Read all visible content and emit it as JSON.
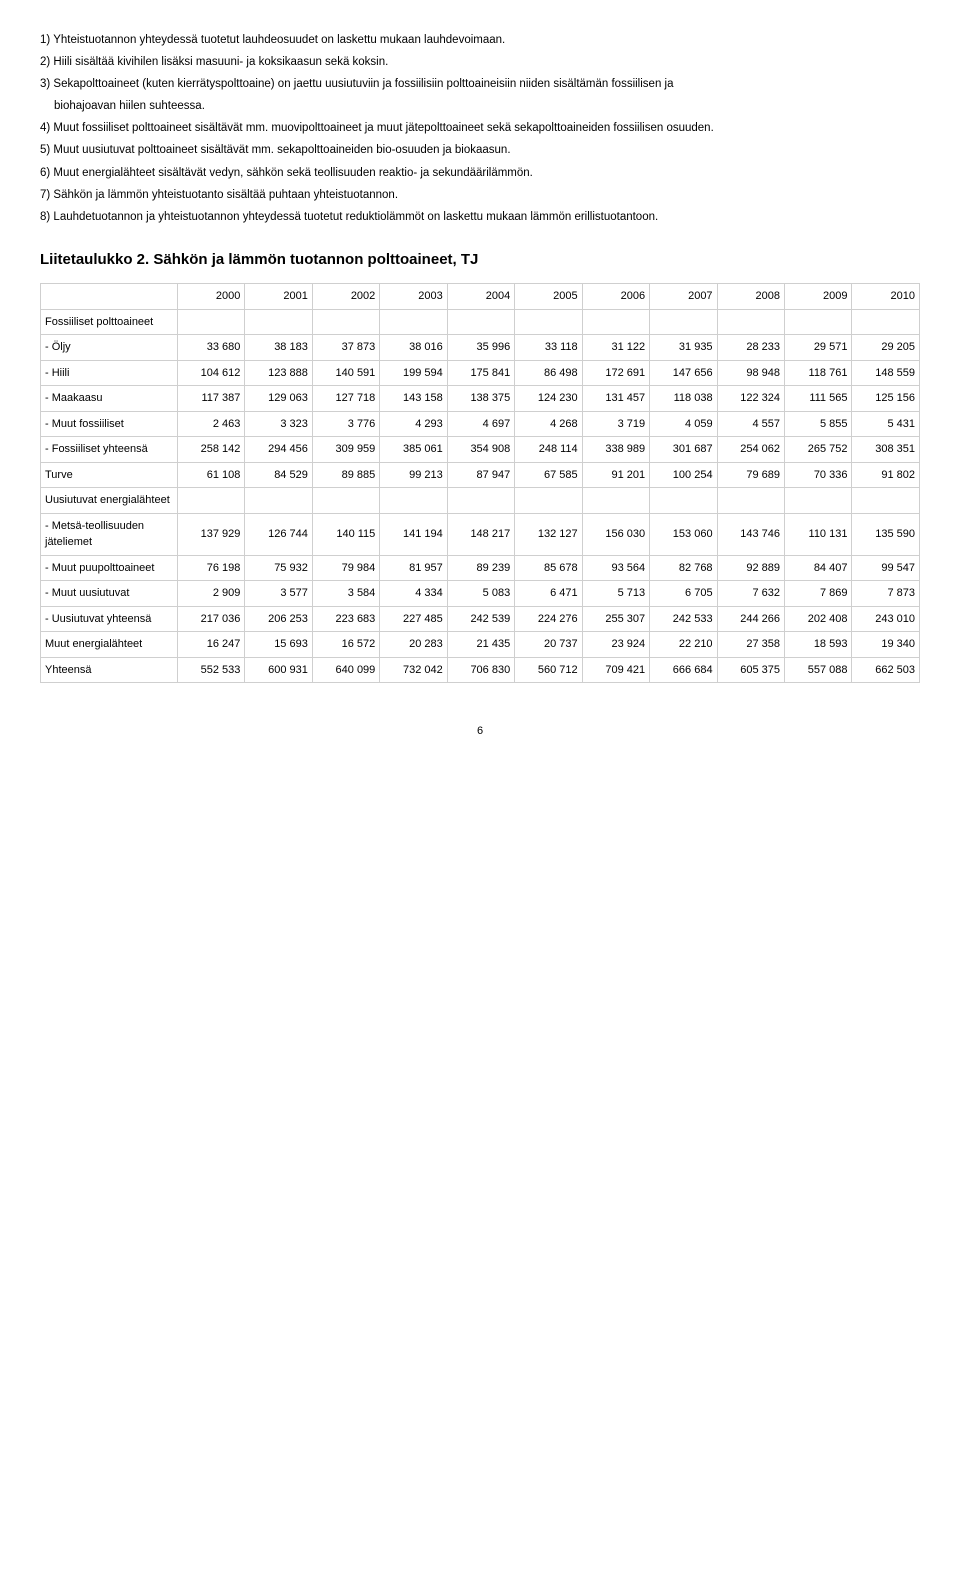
{
  "notes": {
    "n1": "1) Yhteistuotannon yhteydessä tuotetut lauhdeosuudet on laskettu mukaan lauhdevoimaan.",
    "n2": "2) Hiili sisältää kivihilen lisäksi masuuni- ja koksikaasun sekä koksin.",
    "n3a": "3) Sekapolttoaineet (kuten kierrätyspolttoaine) on jaettu uusiutuviin ja fossiilisiin polttoaineisiin niiden sisältämän fossiilisen ja",
    "n3b": "biohajoavan hiilen suhteessa.",
    "n4": "4) Muut fossiiliset polttoaineet sisältävät mm. muovipolttoaineet ja muut jätepolttoaineet sekä sekapolttoaineiden fossiilisen osuuden.",
    "n5": "5) Muut uusiutuvat polttoaineet sisältävät mm. sekapolttoaineiden bio-osuuden ja biokaasun.",
    "n6": "6) Muut energialähteet sisältävät vedyn, sähkön sekä teollisuuden reaktio- ja sekundäärilämmön.",
    "n7": "7) Sähkön ja lämmön yhteistuotanto sisältää puhtaan yhteistuotannon.",
    "n8": "8) Lauhdetuotannon ja yhteistuotannon yhteydessä tuotetut reduktiolämmöt on laskettu mukaan lämmön erillistuotantoon."
  },
  "table_title": "Liitetaulukko 2. Sähkön ja lämmön tuotannon polttoaineet, TJ",
  "years": [
    "2000",
    "2001",
    "2002",
    "2003",
    "2004",
    "2005",
    "2006",
    "2007",
    "2008",
    "2009",
    "2010"
  ],
  "rows": [
    {
      "label": "Fossiiliset polttoaineet",
      "values": [
        "",
        "",
        "",
        "",
        "",
        "",
        "",
        "",
        "",
        "",
        ""
      ]
    },
    {
      "label": "- Öljy",
      "values": [
        "33 680",
        "38 183",
        "37 873",
        "38 016",
        "35 996",
        "33 118",
        "31 122",
        "31 935",
        "28 233",
        "29 571",
        "29 205"
      ]
    },
    {
      "label": "- Hiili",
      "values": [
        "104 612",
        "123 888",
        "140 591",
        "199 594",
        "175 841",
        "86 498",
        "172 691",
        "147 656",
        "98 948",
        "118 761",
        "148 559"
      ]
    },
    {
      "label": "- Maakaasu",
      "values": [
        "117 387",
        "129 063",
        "127 718",
        "143 158",
        "138 375",
        "124 230",
        "131 457",
        "118 038",
        "122 324",
        "111 565",
        "125 156"
      ]
    },
    {
      "label": "- Muut fossiiliset",
      "values": [
        "2 463",
        "3 323",
        "3 776",
        "4 293",
        "4 697",
        "4 268",
        "3 719",
        "4 059",
        "4 557",
        "5 855",
        "5 431"
      ]
    },
    {
      "label": "- Fossiiliset yhteensä",
      "values": [
        "258 142",
        "294 456",
        "309 959",
        "385 061",
        "354 908",
        "248 114",
        "338 989",
        "301 687",
        "254 062",
        "265 752",
        "308 351"
      ]
    },
    {
      "label": "Turve",
      "values": [
        "61 108",
        "84 529",
        "89 885",
        "99 213",
        "87 947",
        "67 585",
        "91 201",
        "100 254",
        "79 689",
        "70 336",
        "91 802"
      ]
    },
    {
      "label": "Uusiutuvat energialähteet",
      "values": [
        "",
        "",
        "",
        "",
        "",
        "",
        "",
        "",
        "",
        "",
        ""
      ]
    },
    {
      "label": "- Metsä-teollisuuden jäteliemet",
      "values": [
        "137 929",
        "126 744",
        "140 115",
        "141 194",
        "148 217",
        "132 127",
        "156 030",
        "153 060",
        "143 746",
        "110 131",
        "135 590"
      ]
    },
    {
      "label": "- Muut puupolttoaineet",
      "values": [
        "76 198",
        "75 932",
        "79 984",
        "81 957",
        "89 239",
        "85 678",
        "93 564",
        "82 768",
        "92 889",
        "84 407",
        "99 547"
      ]
    },
    {
      "label": "- Muut uusiutuvat",
      "values": [
        "2 909",
        "3 577",
        "3 584",
        "4 334",
        "5 083",
        "6 471",
        "5 713",
        "6 705",
        "7 632",
        "7 869",
        "7 873"
      ]
    },
    {
      "label": "- Uusiutuvat yhteensä",
      "values": [
        "217 036",
        "206 253",
        "223 683",
        "227 485",
        "242 539",
        "224 276",
        "255 307",
        "242 533",
        "244 266",
        "202 408",
        "243 010"
      ]
    },
    {
      "label": "Muut energialähteet",
      "values": [
        "16 247",
        "15 693",
        "16 572",
        "20 283",
        "21 435",
        "20 737",
        "23 924",
        "22 210",
        "27 358",
        "18 593",
        "19 340"
      ]
    },
    {
      "label": "Yhteensä",
      "values": [
        "552 533",
        "600 931",
        "640 099",
        "732 042",
        "706 830",
        "560 712",
        "709 421",
        "666 684",
        "605 375",
        "557 088",
        "662 503"
      ]
    }
  ],
  "page_number": "6"
}
